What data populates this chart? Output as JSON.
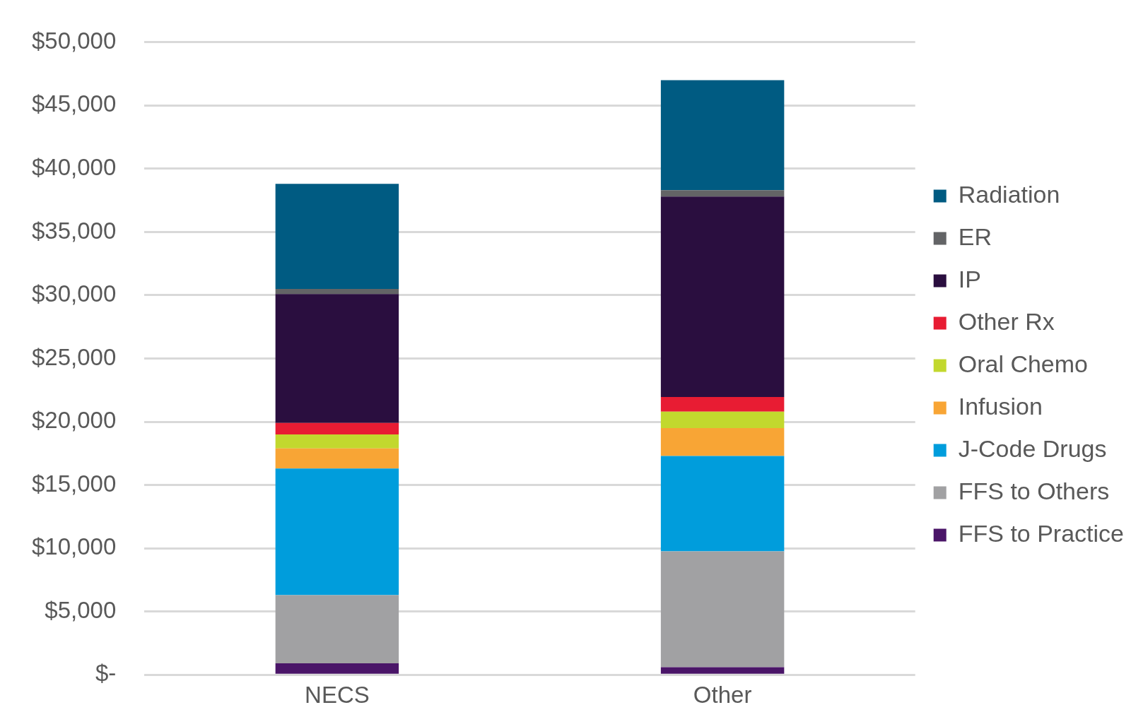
{
  "chart_data": {
    "type": "bar",
    "stacked": true,
    "categories": [
      "NECS",
      "Other"
    ],
    "series": [
      {
        "name": "FFS to Practice",
        "color": "#4a1568",
        "values": [
          900,
          600
        ]
      },
      {
        "name": "FFS to Others",
        "color": "#a1a1a3",
        "values": [
          5400,
          9150
        ]
      },
      {
        "name": "J-Code Drugs",
        "color": "#009ddc",
        "values": [
          10000,
          7550
        ]
      },
      {
        "name": "Infusion",
        "color": "#f8a535",
        "values": [
          1600,
          2200
        ]
      },
      {
        "name": "Oral Chemo",
        "color": "#c2d82e",
        "values": [
          1100,
          1300
        ]
      },
      {
        "name": "Other Rx",
        "color": "#e81c33",
        "values": [
          900,
          1150
        ]
      },
      {
        "name": "IP",
        "color": "#2a0e3f",
        "values": [
          10200,
          15850
        ]
      },
      {
        "name": "ER",
        "color": "#636466",
        "values": [
          400,
          500
        ]
      },
      {
        "name": "Radiation",
        "color": "#005b82",
        "values": [
          8300,
          8700
        ]
      }
    ],
    "ylim": [
      0,
      50000
    ],
    "yticks": [
      {
        "value": 0,
        "label": "$-"
      },
      {
        "value": 5000,
        "label": "$5,000"
      },
      {
        "value": 10000,
        "label": "$10,000"
      },
      {
        "value": 15000,
        "label": "$15,000"
      },
      {
        "value": 20000,
        "label": "$20,000"
      },
      {
        "value": 25000,
        "label": "$25,000"
      },
      {
        "value": 30000,
        "label": "$30,000"
      },
      {
        "value": 35000,
        "label": "$35,000"
      },
      {
        "value": 40000,
        "label": "$40,000"
      },
      {
        "value": 45000,
        "label": "$45,000"
      },
      {
        "value": 50000,
        "label": "$50,000"
      }
    ],
    "grid": "y",
    "legend": "right"
  }
}
